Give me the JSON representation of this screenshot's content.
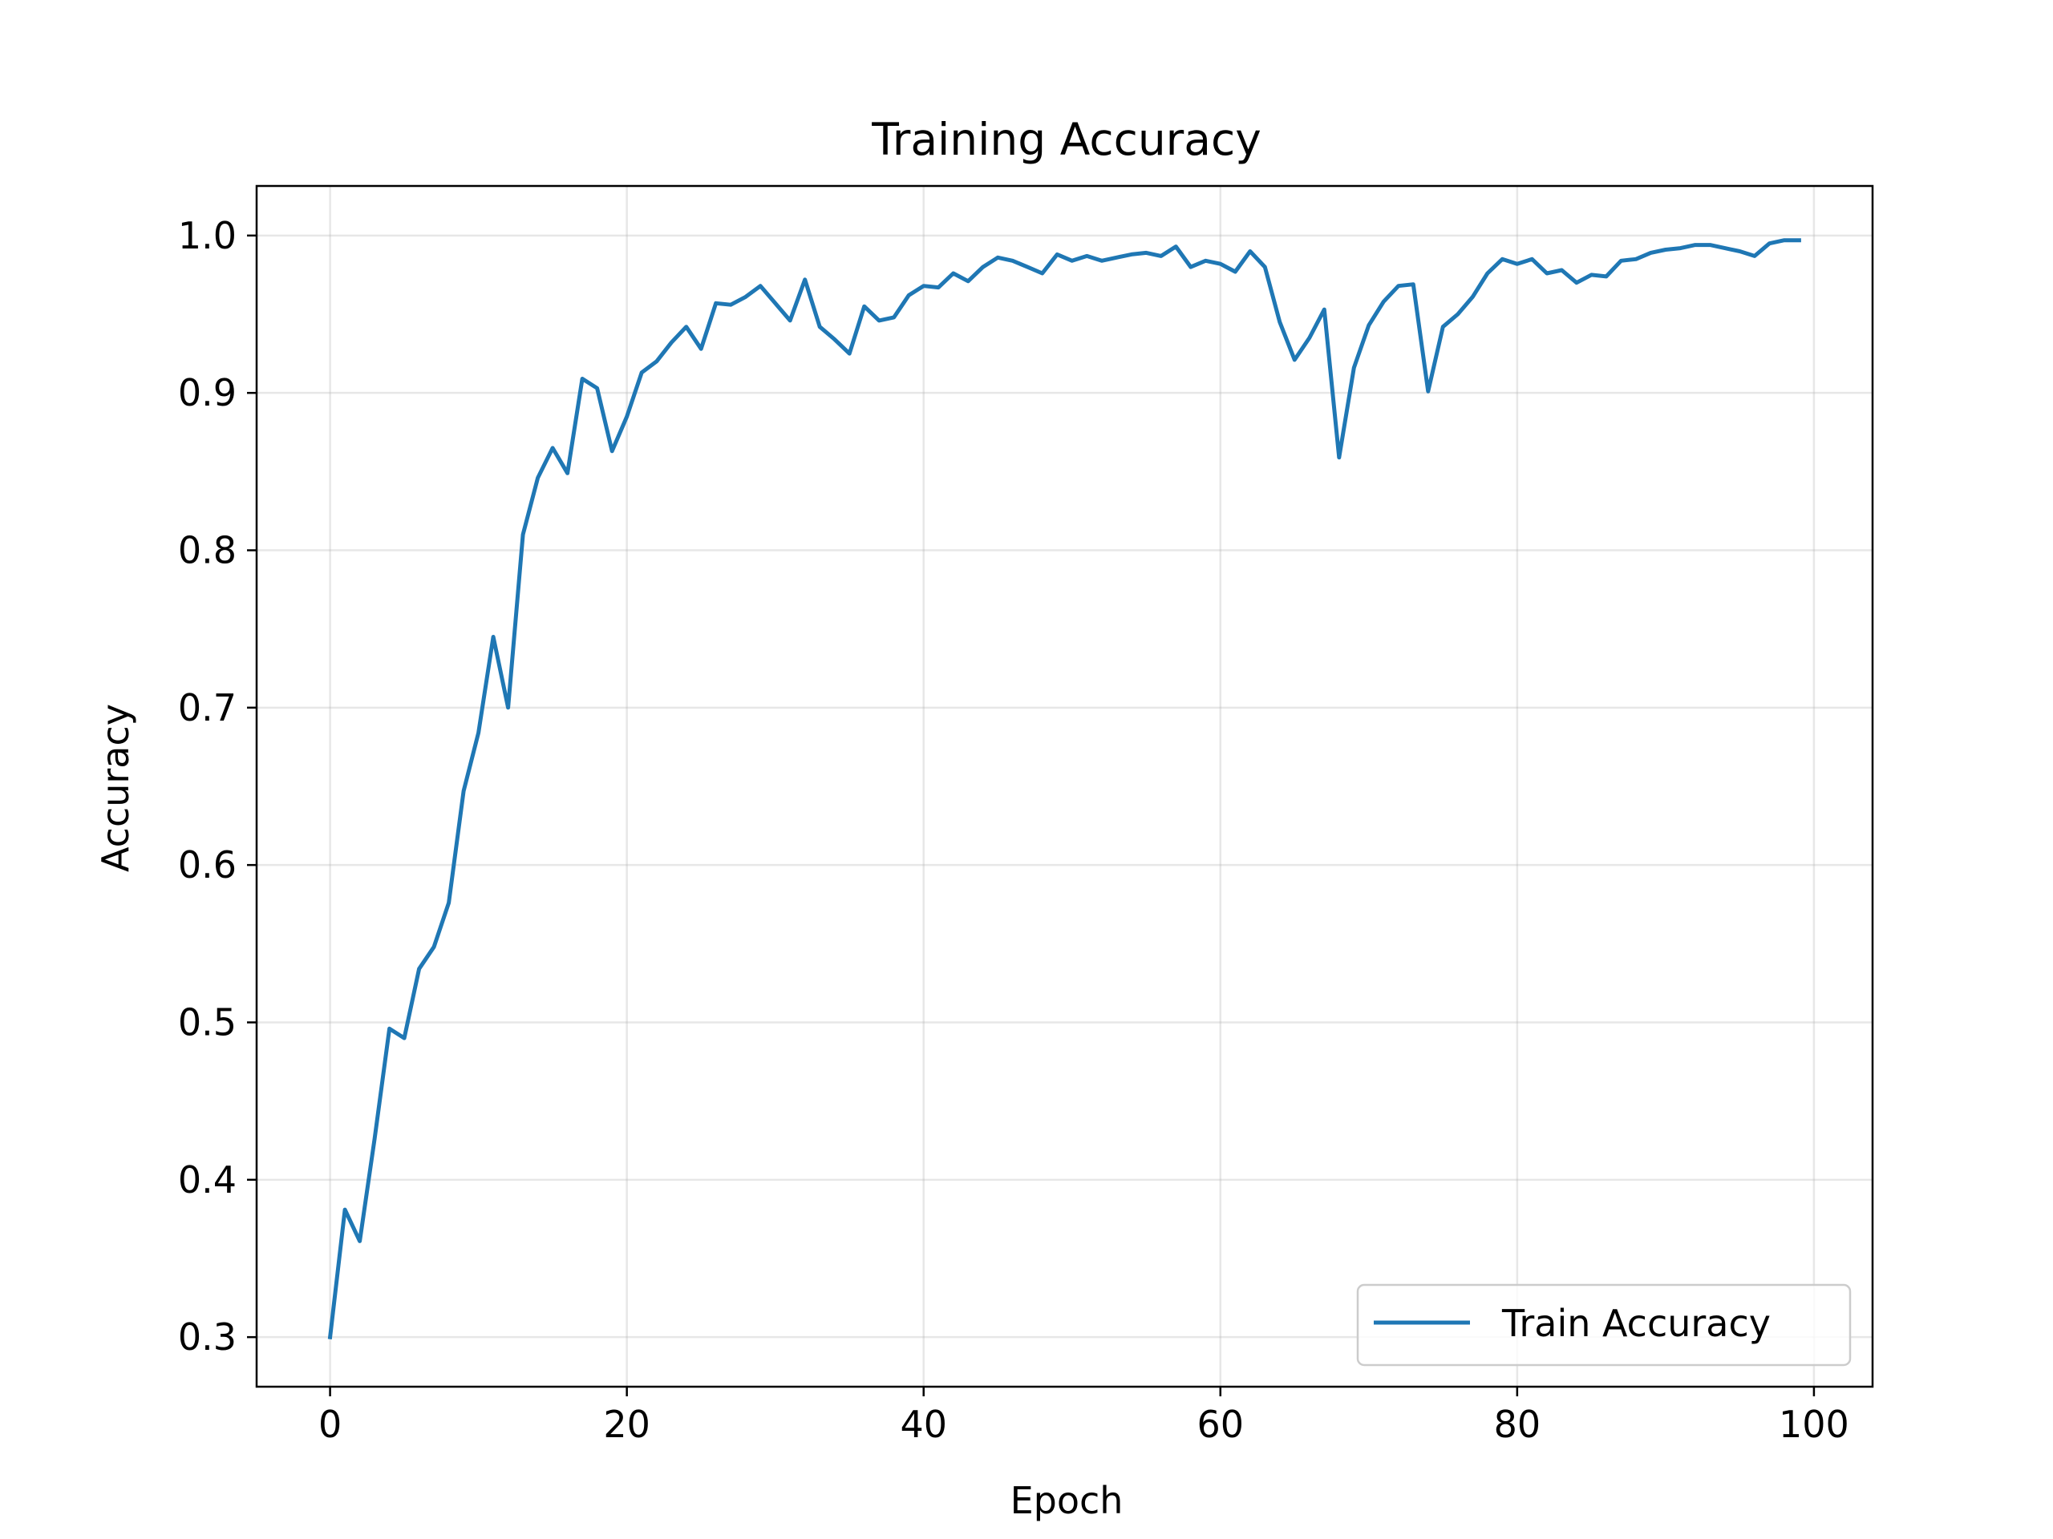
{
  "chart_data": {
    "type": "line",
    "title": "Training Accuracy",
    "xlabel": "Epoch",
    "ylabel": "Accuracy",
    "xlim": [
      -4.95,
      103.95
    ],
    "ylim": [
      0.2685,
      1.0315
    ],
    "xticks": [
      0,
      20,
      40,
      60,
      80,
      100
    ],
    "yticks": [
      0.3,
      0.4,
      0.5,
      0.6,
      0.7,
      0.8,
      0.9,
      1.0
    ],
    "xtick_labels": [
      "0",
      "20",
      "40",
      "60",
      "80",
      "100"
    ],
    "ytick_labels": [
      "0.3",
      "0.4",
      "0.5",
      "0.6",
      "0.7",
      "0.8",
      "0.9",
      "1.0"
    ],
    "grid": true,
    "legend_position": "lower right",
    "series": [
      {
        "name": "Train Accuracy",
        "color": "#1f77b4",
        "x": [
          0,
          1,
          2,
          3,
          4,
          5,
          6,
          7,
          8,
          9,
          10,
          11,
          12,
          13,
          14,
          15,
          16,
          17,
          18,
          19,
          20,
          21,
          22,
          23,
          24,
          25,
          26,
          27,
          28,
          29,
          30,
          31,
          32,
          33,
          34,
          35,
          36,
          37,
          38,
          39,
          40,
          41,
          42,
          43,
          44,
          45,
          46,
          47,
          48,
          49,
          50,
          51,
          52,
          53,
          54,
          55,
          56,
          57,
          58,
          59,
          60,
          61,
          62,
          63,
          64,
          65,
          66,
          67,
          68,
          69,
          70,
          71,
          72,
          73,
          74,
          75,
          76,
          77,
          78,
          79,
          80,
          81,
          82,
          83,
          84,
          85,
          86,
          87,
          88,
          89,
          90,
          91,
          92,
          93,
          94,
          95,
          96,
          97,
          98,
          99
        ],
        "y": [
          0.3,
          0.381,
          0.361,
          0.426,
          0.496,
          0.49,
          0.534,
          0.548,
          0.576,
          0.647,
          0.684,
          0.745,
          0.7,
          0.81,
          0.846,
          0.865,
          0.849,
          0.909,
          0.903,
          0.863,
          0.885,
          0.913,
          0.92,
          0.932,
          0.942,
          0.928,
          0.957,
          0.956,
          0.961,
          0.968,
          0.957,
          0.946,
          0.972,
          0.942,
          0.934,
          0.925,
          0.955,
          0.946,
          0.948,
          0.962,
          0.968,
          0.967,
          0.976,
          0.971,
          0.98,
          0.986,
          0.984,
          0.98,
          0.976,
          0.988,
          0.984,
          0.987,
          0.984,
          0.986,
          0.988,
          0.989,
          0.987,
          0.993,
          0.98,
          0.984,
          0.982,
          0.977,
          0.99,
          0.98,
          0.945,
          0.921,
          0.935,
          0.953,
          0.859,
          0.916,
          0.943,
          0.958,
          0.968,
          0.969,
          0.901,
          0.942,
          0.95,
          0.961,
          0.976,
          0.985,
          0.982,
          0.985,
          0.976,
          0.978,
          0.97,
          0.975,
          0.974,
          0.984,
          0.985,
          0.989,
          0.991,
          0.992,
          0.994,
          0.994,
          0.992,
          0.99,
          0.987,
          0.995,
          0.997,
          0.997
        ]
      }
    ]
  }
}
